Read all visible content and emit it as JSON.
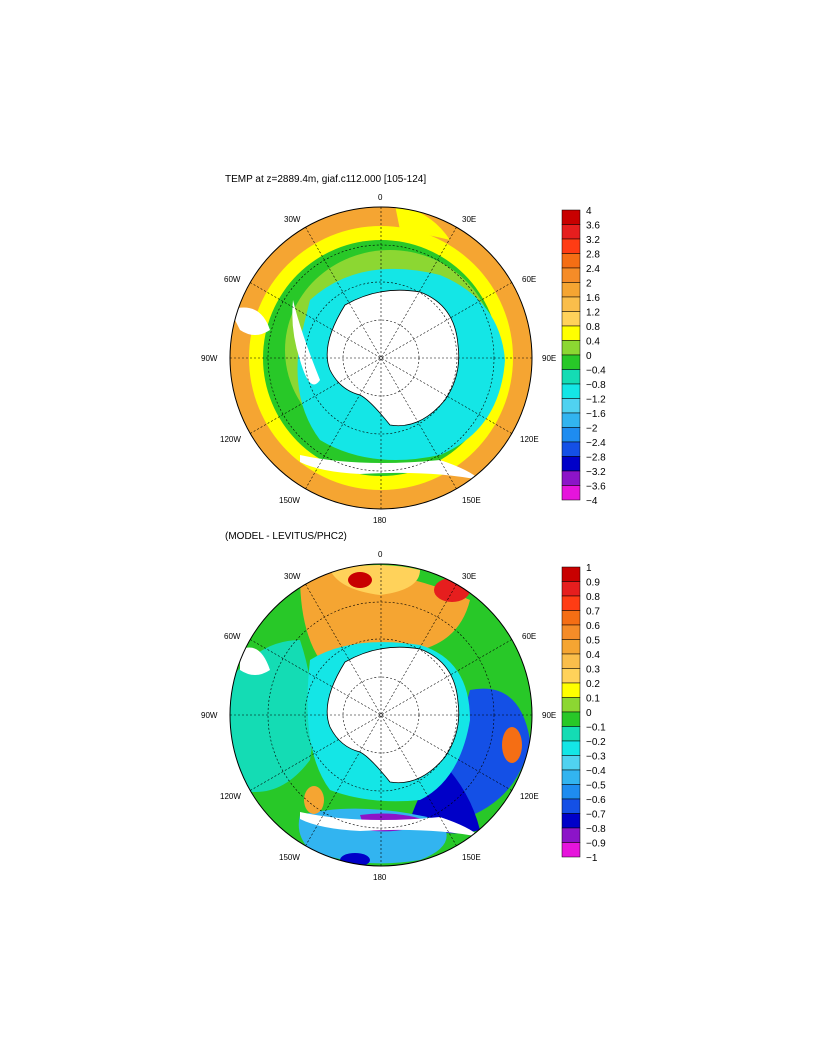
{
  "panels": [
    {
      "title": "TEMP at z=2889.4m, giaf.c112.000 [105-124]",
      "colorbar_labels": [
        "4",
        "3.6",
        "3.2",
        "2.8",
        "2.4",
        "2",
        "1.6",
        "1.2",
        "0.8",
        "0.4",
        "0",
        "−0.4",
        "−0.8",
        "−1.2",
        "−1.6",
        "−2",
        "−2.4",
        "−2.8",
        "−3.2",
        "−3.6",
        "−4"
      ]
    },
    {
      "title": "(MODEL - LEVITUS/PHC2)",
      "colorbar_labels": [
        "1",
        "0.9",
        "0.8",
        "0.7",
        "0.6",
        "0.5",
        "0.4",
        "0.3",
        "0.2",
        "0.1",
        "0",
        "−0.1",
        "−0.2",
        "−0.3",
        "−0.4",
        "−0.5",
        "−0.6",
        "−0.7",
        "−0.8",
        "−0.9",
        "−1"
      ]
    }
  ],
  "longitude_labels": {
    "top": "0",
    "bottom": "180",
    "left": "90W",
    "right": "90E",
    "upper_left_1": "30W",
    "upper_left_2": "60W",
    "lower_left_1": "120W",
    "lower_left_2": "150W",
    "upper_right_1": "30E",
    "upper_right_2": "60E",
    "lower_right_1": "120E",
    "lower_right_2": "150E"
  },
  "colorbar_colors": [
    "#c80000",
    "#e61e1e",
    "#ff3c14",
    "#f56e14",
    "#f58c28",
    "#f5a532",
    "#fabe4b",
    "#ffd25a",
    "#ffff00",
    "#8cd732",
    "#28c828",
    "#14dcb4",
    "#14e6e6",
    "#50d2f0",
    "#32b4f0",
    "#1e8cf0",
    "#1450e6",
    "#0000c8",
    "#8c14c8",
    "#e614dc",
    "#d2d2d2",
    "#6e6e6e"
  ],
  "colorbar_lead_colors": [
    "#c80000",
    "#e61e1e",
    "#ff3c14",
    "#f56e14",
    "#f58c28",
    "#f5a532",
    "#fabe4b",
    "#ffd25a",
    "#ffff00",
    "#8cd732",
    "#28c828",
    "#14dcb4",
    "#14e6e6",
    "#50d2f0",
    "#32b4f0",
    "#1e8cf0",
    "#1450e6",
    "#0000c8",
    "#8c14c8",
    "#e614dc",
    "#d2d2d2",
    "#6e6e6e"
  ]
}
